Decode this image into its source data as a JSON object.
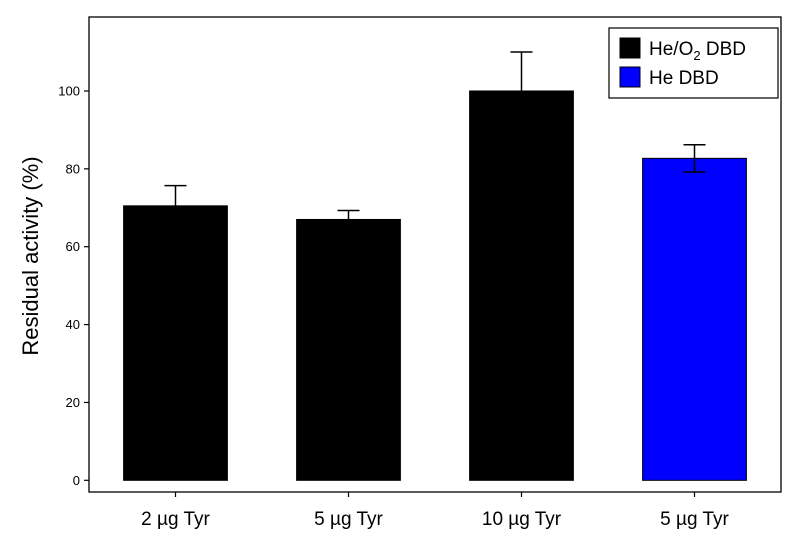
{
  "chart_data": {
    "type": "bar",
    "title": "",
    "xlabel": "",
    "ylabel": "Residual activity (%)",
    "ylim": [
      -3,
      119
    ],
    "yticks": [
      0,
      20,
      40,
      60,
      80,
      100
    ],
    "grid": false,
    "legend_placement": "top-right",
    "categories": [
      "2 µg Tyr",
      "5 µg Tyr",
      "10 µg Tyr",
      "5 µg Tyr"
    ],
    "values": [
      70.5,
      67,
      100,
      82.7
    ],
    "error_upper": [
      5.2,
      2.3,
      10,
      3.5
    ],
    "error_lower": [
      0,
      0,
      0,
      3.5
    ],
    "bar_series": [
      "He/O2 DBD",
      "He/O2 DBD",
      "He/O2 DBD",
      "He DBD"
    ],
    "series": [
      {
        "name": "He/O2 DBD",
        "color": "#000000"
      },
      {
        "name": "He DBD",
        "color": "#0000ff"
      }
    ],
    "legend": {
      "items": [
        {
          "text_main": "He/O",
          "text_sub": "2",
          "text_rest": " DBD",
          "color": "#000000"
        },
        {
          "text_main": "He DBD",
          "text_sub": "",
          "text_rest": "",
          "color": "#0000ff"
        }
      ]
    }
  }
}
